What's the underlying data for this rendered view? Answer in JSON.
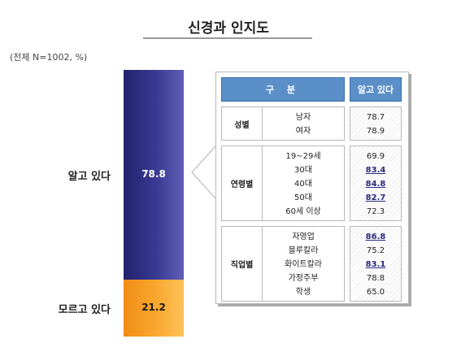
{
  "title": "신경과 인지도",
  "subtitle": "(전체 N=1002, %)",
  "chart_data": {
    "type": "bar",
    "stacked": true,
    "categories": [
      "알고 있다",
      "모르고 있다"
    ],
    "values": [
      78.8,
      21.2
    ],
    "value_labels": [
      "78.8",
      "21.2"
    ],
    "ylim": [
      0,
      100
    ],
    "colors": [
      "#3a3a94",
      "#f9a830"
    ]
  },
  "table": {
    "header_category": "구 분",
    "header_value": "알고 있다",
    "groups": [
      {
        "name": "성별",
        "rows": [
          {
            "label": "남자",
            "value": "78.7",
            "highlight": false
          },
          {
            "label": "여자",
            "value": "78.9",
            "highlight": false
          }
        ]
      },
      {
        "name": "연령별",
        "rows": [
          {
            "label": "19~29세",
            "value": "69.9",
            "highlight": false
          },
          {
            "label": "30대",
            "value": "83.4",
            "highlight": true
          },
          {
            "label": "40대",
            "value": "84.8",
            "highlight": true
          },
          {
            "label": "50대",
            "value": "82.7",
            "highlight": true
          },
          {
            "label": "60세 이상",
            "value": "72.3",
            "highlight": false
          }
        ]
      },
      {
        "name": "직업별",
        "rows": [
          {
            "label": "자영업",
            "value": "86.8",
            "highlight": true
          },
          {
            "label": "블루칼라",
            "value": "75.2",
            "highlight": false
          },
          {
            "label": "화이트칼라",
            "value": "83.1",
            "highlight": true
          },
          {
            "label": "가정주부",
            "value": "78.8",
            "highlight": false
          },
          {
            "label": "학생",
            "value": "65.0",
            "highlight": false
          }
        ]
      }
    ]
  }
}
